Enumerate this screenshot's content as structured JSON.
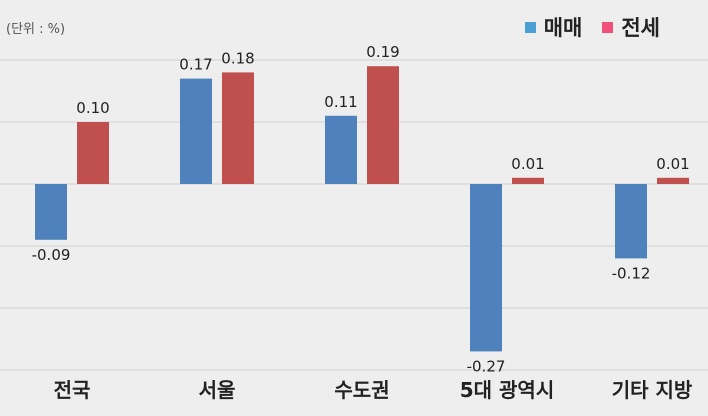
{
  "unit_label": "(단위 : %)",
  "colors": {
    "sale": "#4f81bd",
    "jeonse": "#c0504d",
    "legend_sale": "#4a9fd4",
    "legend_jeonse": "#f0507a"
  },
  "chart_data": {
    "type": "bar",
    "categories": [
      "전국",
      "서울",
      "수도권",
      "5대 광역시",
      "기타 지방"
    ],
    "series": [
      {
        "name": "매매",
        "values": [
          -0.09,
          0.17,
          0.11,
          -0.27,
          -0.12
        ],
        "labels": [
          "-0.09",
          "0.17",
          "0.11",
          "-0.27",
          "-0.12"
        ]
      },
      {
        "name": "전세",
        "values": [
          0.1,
          0.18,
          0.19,
          0.01,
          0.01
        ],
        "labels": [
          "0.10",
          "0.18",
          "0.19",
          "0.01",
          "0.01"
        ]
      }
    ],
    "ylim": [
      -0.3,
      0.2
    ],
    "grid": true,
    "legend_position": "top-right"
  }
}
